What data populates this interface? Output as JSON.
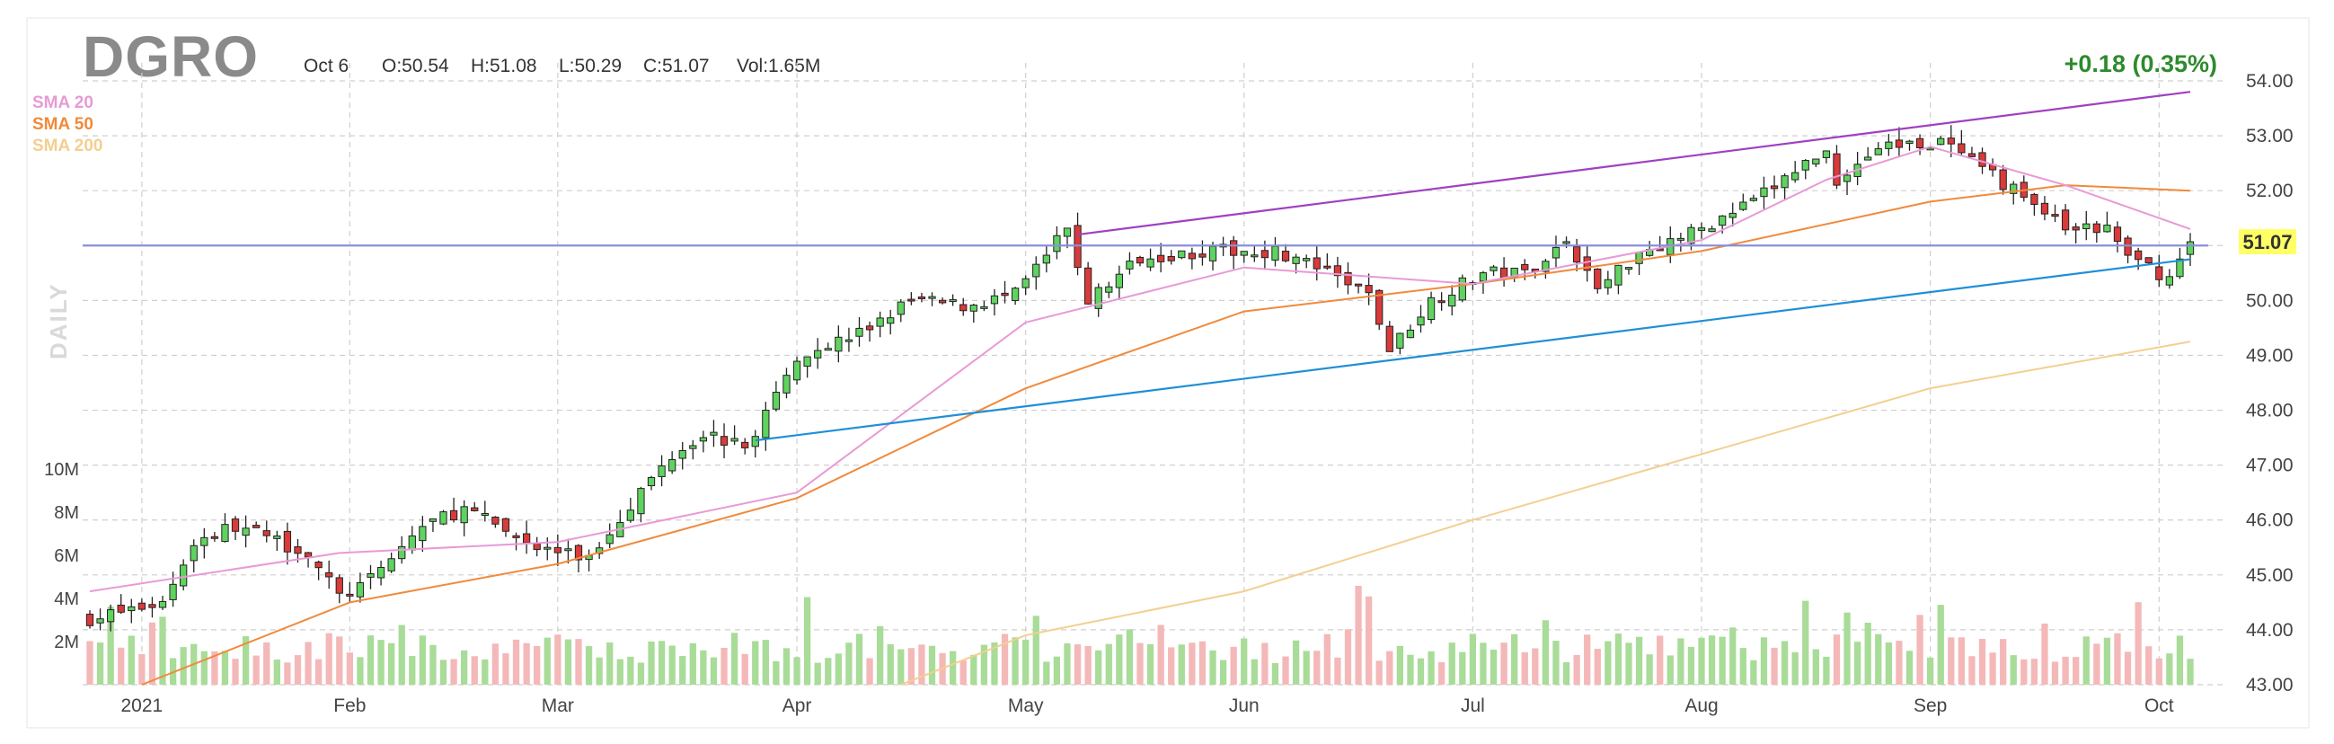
{
  "header": {
    "ticker": "DGRO",
    "date": "Oct 6",
    "open": "O:50.54",
    "high": "H:51.08",
    "low": "L:50.29",
    "close": "C:51.07",
    "volume": "Vol:1.65M",
    "change": "+0.18 (0.35%)",
    "interval": "DAILY"
  },
  "legend": [
    {
      "label": "SMA 20",
      "color": "#e89ad6"
    },
    {
      "label": "SMA 50",
      "color": "#f08a3c"
    },
    {
      "label": "SMA 200",
      "color": "#f3cf8f"
    }
  ],
  "chart_data": {
    "type": "candlestick",
    "ylim": [
      43.0,
      54.0
    ],
    "y_ticks": [
      "54.00",
      "53.00",
      "52.00",
      "51.00",
      "50.00",
      "49.00",
      "48.00",
      "47.00",
      "46.00",
      "45.00",
      "44.00",
      "43.00"
    ],
    "last_price_label": "51.07",
    "last_price": 51.07,
    "volume_ticks": [
      "10M",
      "8M",
      "6M",
      "4M",
      "2M"
    ],
    "x_ticks": [
      "2021",
      "Feb",
      "Mar",
      "Apr",
      "May",
      "Jun",
      "Jul",
      "Aug",
      "Sep",
      "Oct"
    ],
    "x_tick_dates": [
      "2021-01-04",
      "2021-02-01",
      "2021-03-01",
      "2021-04-01",
      "2021-05-03",
      "2021-06-01",
      "2021-07-01",
      "2021-08-02",
      "2021-09-01",
      "2021-10-01"
    ],
    "key_points": [
      [
        "2020-12-28",
        44.2
      ],
      [
        "2021-01-06",
        44.5
      ],
      [
        "2021-01-11",
        45.6
      ],
      [
        "2021-01-15",
        45.9
      ],
      [
        "2021-01-26",
        45.4
      ],
      [
        "2021-01-29",
        44.6
      ],
      [
        "2021-02-03",
        44.9
      ],
      [
        "2021-02-10",
        45.9
      ],
      [
        "2021-02-16",
        46.2
      ],
      [
        "2021-02-25",
        45.5
      ],
      [
        "2021-03-04",
        45.3
      ],
      [
        "2021-03-10",
        46.3
      ],
      [
        "2021-03-16",
        47.2
      ],
      [
        "2021-03-19",
        47.6
      ],
      [
        "2021-03-25",
        47.3
      ],
      [
        "2021-03-31",
        48.6
      ],
      [
        "2021-04-01",
        49.0
      ],
      [
        "2021-04-09",
        49.4
      ],
      [
        "2021-04-16",
        50.0
      ],
      [
        "2021-04-23",
        49.9
      ],
      [
        "2021-04-30",
        50.1
      ],
      [
        "2021-05-07",
        51.3
      ],
      [
        "2021-05-11",
        50.0
      ],
      [
        "2021-05-13",
        50.3
      ],
      [
        "2021-05-18",
        50.8
      ],
      [
        "2021-05-28",
        50.9
      ],
      [
        "2021-06-04",
        50.9
      ],
      [
        "2021-06-10",
        50.6
      ],
      [
        "2021-06-17",
        50.1
      ],
      [
        "2021-06-21",
        49.1
      ],
      [
        "2021-06-25",
        50.0
      ],
      [
        "2021-07-02",
        50.5
      ],
      [
        "2021-07-08",
        50.5
      ],
      [
        "2021-07-14",
        51.1
      ],
      [
        "2021-07-19",
        50.2
      ],
      [
        "2021-07-23",
        50.9
      ],
      [
        "2021-08-02",
        51.3
      ],
      [
        "2021-08-09",
        51.8
      ],
      [
        "2021-08-16",
        52.5
      ],
      [
        "2021-08-18",
        52.7
      ],
      [
        "2021-08-19",
        52.2
      ],
      [
        "2021-08-25",
        52.8
      ],
      [
        "2021-09-02",
        52.9
      ],
      [
        "2021-09-07",
        52.5
      ],
      [
        "2021-09-14",
        51.9
      ],
      [
        "2021-09-20",
        51.3
      ],
      [
        "2021-09-24",
        51.3
      ],
      [
        "2021-09-28",
        50.8
      ],
      [
        "2021-10-04",
        50.4
      ],
      [
        "2021-10-06",
        51.07
      ]
    ],
    "sma20_points": [
      [
        "2020-12-28",
        44.7
      ],
      [
        "2021-01-29",
        45.4
      ],
      [
        "2021-03-01",
        45.6
      ],
      [
        "2021-04-01",
        46.5
      ],
      [
        "2021-05-03",
        49.6
      ],
      [
        "2021-06-01",
        50.6
      ],
      [
        "2021-07-01",
        50.3
      ],
      [
        "2021-08-02",
        51.1
      ],
      [
        "2021-08-18",
        52.2
      ],
      [
        "2021-09-01",
        52.8
      ],
      [
        "2021-09-20",
        52.1
      ],
      [
        "2021-10-06",
        51.3
      ]
    ],
    "sma50_points": [
      [
        "2021-01-04",
        43.0
      ],
      [
        "2021-02-01",
        44.5
      ],
      [
        "2021-03-01",
        45.2
      ],
      [
        "2021-04-01",
        46.4
      ],
      [
        "2021-05-03",
        48.4
      ],
      [
        "2021-06-01",
        49.8
      ],
      [
        "2021-07-01",
        50.3
      ],
      [
        "2021-08-02",
        50.9
      ],
      [
        "2021-09-01",
        51.8
      ],
      [
        "2021-09-20",
        52.1
      ],
      [
        "2021-10-06",
        52.0
      ]
    ],
    "sma200_points": [
      [
        "2021-04-15",
        43.0
      ],
      [
        "2021-05-03",
        43.9
      ],
      [
        "2021-06-01",
        44.7
      ],
      [
        "2021-07-01",
        46.0
      ],
      [
        "2021-08-02",
        47.2
      ],
      [
        "2021-09-01",
        48.4
      ],
      [
        "2021-10-06",
        49.25
      ]
    ],
    "trendlines": [
      {
        "color": "#1f8fd6",
        "points": [
          [
            "2021-03-26",
            47.45
          ],
          [
            "2021-10-06",
            50.75
          ]
        ]
      },
      {
        "color": "#a040c0",
        "points": [
          [
            "2021-05-10",
            51.2
          ],
          [
            "2021-10-06",
            53.8
          ]
        ]
      },
      {
        "color": "#8a8fd9",
        "points": [
          [
            "2020-12-28",
            51.0
          ],
          [
            "2021-10-06",
            51.0
          ]
        ]
      }
    ]
  }
}
